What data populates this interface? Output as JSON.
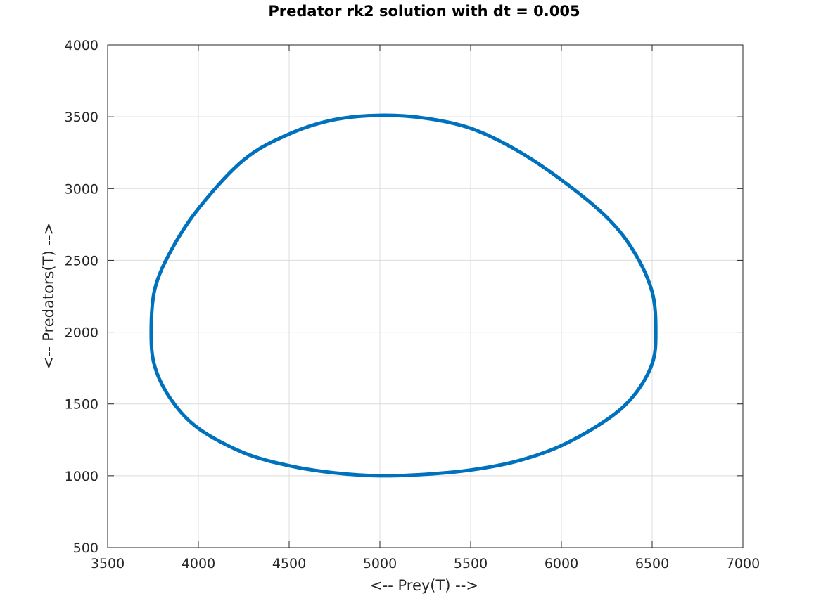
{
  "chart_data": {
    "type": "line",
    "title": "Predator rk2 solution with dt = 0.005",
    "xlabel": "<-- Prey(T) -->",
    "ylabel": "<-- Predators(T) -->",
    "xlim": [
      3500,
      7000
    ],
    "ylim": [
      500,
      4000
    ],
    "xticks": [
      3500,
      4000,
      4500,
      5000,
      5500,
      6000,
      6500,
      7000
    ],
    "yticks": [
      500,
      1000,
      1500,
      2000,
      2500,
      3000,
      3500,
      4000
    ],
    "grid": true,
    "series": [
      {
        "color": "#0072BD",
        "x": [
          5000,
          5250,
          5500,
          5750,
          6000,
          6250,
          6400,
          6500,
          6520,
          6500,
          6400,
          6250,
          6000,
          5750,
          5500,
          5250,
          5000,
          4750,
          4500,
          4250,
          4000,
          3850,
          3760,
          3740,
          3760,
          3850,
          4000,
          4250,
          4500,
          4750,
          5000
        ],
        "y": [
          1000,
          1010,
          1040,
          1100,
          1210,
          1390,
          1560,
          1780,
          2000,
          2280,
          2560,
          2800,
          3060,
          3270,
          3420,
          3490,
          3510,
          3480,
          3380,
          3200,
          2860,
          2570,
          2300,
          2000,
          1760,
          1530,
          1330,
          1160,
          1070,
          1020,
          1000
        ]
      }
    ]
  }
}
